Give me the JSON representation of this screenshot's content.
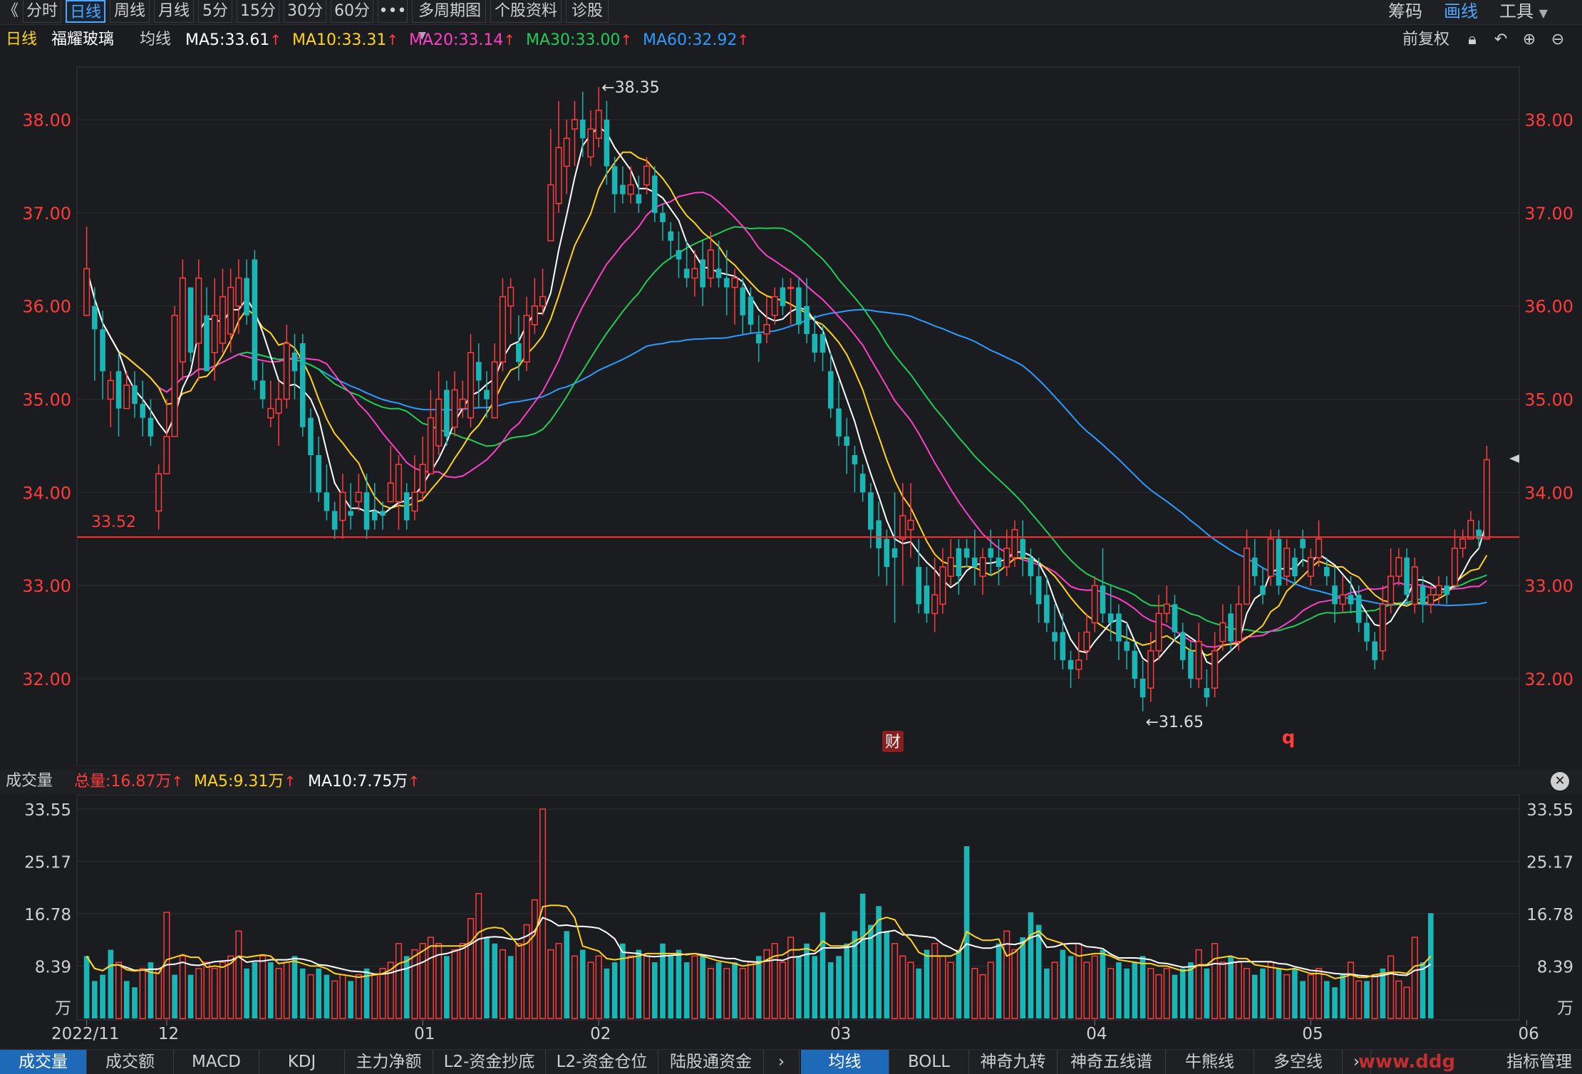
{
  "toolbar": {
    "back_icon": "chevron-left-icon",
    "periods": [
      "分时",
      "日线",
      "周线",
      "月线",
      "5分",
      "15分",
      "30分",
      "60分",
      "•••",
      "多周期图"
    ],
    "active_period": "日线",
    "extra": [
      "个股资料",
      "诊股"
    ],
    "right": [
      "筹码",
      "画线",
      "工具"
    ]
  },
  "info": {
    "period": "日线",
    "stock_name": "福耀玻璃",
    "ma_label": "均线",
    "ma5": "MA5:33.61",
    "ma10": "MA10:33.31",
    "ma20": "MA20:33.14",
    "ma30": "MA30:33.00",
    "ma60": "MA60:32.92",
    "adjust": "前复权",
    "up_arrow": "↑"
  },
  "main_chart": {
    "y_ticks": [
      "38.00",
      "37.00",
      "36.00",
      "35.00",
      "34.00",
      "33.00",
      "32.00"
    ],
    "high_marker": "←38.35",
    "low_marker": "←31.65",
    "hline_label": "33.52",
    "hline_value": 33.52,
    "fin_badge": "财",
    "q_marker": "q"
  },
  "volume": {
    "title": "成交量",
    "total": "总量:16.87万",
    "ma5": "MA5:9.31万",
    "ma10": "MA10:7.75万",
    "y_ticks": [
      "33.55",
      "25.17",
      "16.78",
      "8.39",
      "万"
    ],
    "x_labels": [
      "2022/11",
      "12",
      "01",
      "02",
      "03",
      "04",
      "05",
      "06"
    ]
  },
  "bottom_tabs": {
    "left": [
      "成交量",
      "成交额",
      "MACD",
      "KDJ",
      "主力净额",
      "L2-资金抄底",
      "L2-资金仓位",
      "陆股通资金"
    ],
    "right": [
      "均线",
      "BOLL",
      "神奇九转",
      "神奇五线谱",
      "牛熊线",
      "多空线"
    ],
    "active_left": "成交量",
    "active_right": "均线",
    "more": "指标管理",
    "watermark": "www.ddg"
  },
  "colors": {
    "up": "#ff3b3b",
    "down": "#1ab5b5",
    "ma5": "#ffffff",
    "ma10": "#ffd21f",
    "ma20": "#ff3fc8",
    "ma30": "#22cc55",
    "ma60": "#2e9bff"
  },
  "chart_data": {
    "type": "candlestick",
    "price_ylim": [
      31.5,
      38.5
    ],
    "volume_ylim": [
      0,
      33.55
    ],
    "volume_unit": "万",
    "high": 38.35,
    "low": 31.65,
    "candles": [
      [
        35.9,
        36.4,
        36.85,
        35.9
      ],
      [
        36.0,
        35.75,
        36.2,
        35.2
      ],
      [
        35.75,
        35.3,
        35.95,
        35.0
      ],
      [
        35.0,
        35.2,
        35.3,
        34.7
      ],
      [
        35.3,
        34.9,
        35.5,
        34.6
      ],
      [
        34.9,
        35.15,
        35.3,
        34.9
      ],
      [
        35.15,
        34.95,
        35.3,
        34.8
      ],
      [
        34.95,
        34.8,
        35.2,
        34.6
      ],
      [
        34.8,
        34.6,
        35.0,
        34.5
      ],
      [
        33.8,
        34.2,
        34.3,
        33.6
      ],
      [
        34.2,
        34.6,
        35.0,
        34.2
      ],
      [
        34.6,
        35.9,
        36.0,
        34.6
      ],
      [
        35.4,
        36.3,
        36.5,
        35.2
      ],
      [
        36.2,
        35.5,
        36.0,
        35.4
      ],
      [
        35.6,
        36.3,
        36.5,
        35.2
      ],
      [
        35.9,
        35.3,
        36.2,
        35.3
      ],
      [
        35.5,
        35.9,
        36.3,
        35.2
      ],
      [
        35.6,
        36.1,
        36.4,
        35.5
      ],
      [
        35.7,
        36.2,
        36.4,
        35.5
      ],
      [
        36.0,
        36.3,
        36.5,
        35.7
      ],
      [
        36.3,
        35.9,
        36.5,
        35.8
      ],
      [
        36.5,
        35.2,
        36.6,
        35.1
      ],
      [
        35.2,
        35.0,
        35.4,
        34.9
      ],
      [
        34.8,
        34.9,
        35.2,
        34.7
      ],
      [
        34.85,
        35.0,
        35.2,
        34.5
      ],
      [
        35.0,
        35.6,
        35.8,
        34.9
      ],
      [
        35.5,
        35.3,
        35.7,
        35.0
      ],
      [
        35.6,
        34.7,
        35.7,
        34.6
      ],
      [
        34.8,
        34.4,
        34.9,
        34.0
      ],
      [
        34.4,
        34.0,
        34.6,
        33.9
      ],
      [
        34.0,
        33.8,
        34.3,
        33.7
      ],
      [
        33.8,
        33.6,
        33.9,
        33.5
      ],
      [
        33.7,
        34.0,
        34.2,
        33.5
      ],
      [
        33.8,
        33.75,
        34.1,
        33.6
      ],
      [
        33.9,
        34.0,
        34.2,
        33.8
      ],
      [
        34.0,
        33.6,
        34.2,
        33.5
      ],
      [
        33.8,
        33.7,
        34.1,
        33.6
      ],
      [
        33.8,
        33.75,
        33.9,
        33.6
      ],
      [
        33.9,
        34.1,
        34.5,
        33.9
      ],
      [
        33.9,
        34.3,
        34.4,
        33.6
      ],
      [
        34.0,
        33.7,
        34.1,
        33.6
      ],
      [
        33.8,
        34.0,
        34.4,
        33.7
      ],
      [
        34.0,
        34.3,
        34.6,
        33.9
      ],
      [
        34.2,
        34.8,
        35.1,
        34.2
      ],
      [
        34.5,
        35.0,
        35.3,
        34.4
      ],
      [
        35.1,
        34.6,
        35.2,
        34.5
      ],
      [
        34.7,
        35.1,
        35.3,
        34.6
      ],
      [
        34.9,
        35.0,
        35.2,
        34.8
      ],
      [
        34.8,
        35.5,
        35.7,
        34.7
      ],
      [
        35.4,
        35.2,
        35.6,
        34.9
      ],
      [
        35.1,
        35.0,
        35.3,
        34.8
      ],
      [
        34.8,
        35.4,
        35.6,
        34.8
      ],
      [
        35.4,
        36.1,
        36.3,
        35.3
      ],
      [
        36.0,
        36.2,
        36.3,
        35.7
      ],
      [
        35.6,
        35.4,
        35.9,
        35.2
      ],
      [
        35.4,
        35.9,
        36.1,
        35.3
      ],
      [
        35.8,
        36.0,
        36.3,
        35.7
      ],
      [
        36.0,
        36.1,
        36.4,
        35.9
      ],
      [
        36.7,
        37.3,
        37.9,
        36.7
      ],
      [
        37.1,
        37.7,
        38.2,
        37.0
      ],
      [
        37.5,
        37.8,
        38.0,
        37.2
      ],
      [
        37.9,
        38.0,
        38.2,
        37.5
      ],
      [
        38.0,
        37.8,
        38.3,
        37.6
      ],
      [
        37.6,
        37.9,
        38.1,
        37.5
      ],
      [
        37.8,
        38.1,
        38.35,
        37.7
      ],
      [
        38.0,
        37.5,
        38.2,
        37.3
      ],
      [
        37.5,
        37.2,
        37.6,
        37.0
      ],
      [
        37.3,
        37.2,
        37.5,
        37.1
      ],
      [
        37.2,
        37.3,
        37.5,
        37.1
      ],
      [
        37.2,
        37.1,
        37.4,
        37.0
      ],
      [
        37.3,
        37.5,
        37.6,
        37.2
      ],
      [
        37.4,
        37.0,
        37.5,
        36.9
      ],
      [
        37.0,
        36.9,
        37.1,
        36.7
      ],
      [
        36.8,
        36.7,
        36.9,
        36.5
      ],
      [
        36.6,
        36.5,
        36.8,
        36.3
      ],
      [
        36.4,
        36.3,
        36.7,
        36.2
      ],
      [
        36.3,
        36.4,
        36.6,
        36.1
      ],
      [
        36.5,
        36.2,
        36.7,
        36.0
      ],
      [
        36.3,
        36.6,
        36.8,
        36.2
      ],
      [
        36.4,
        36.3,
        36.7,
        36.2
      ],
      [
        36.3,
        36.2,
        36.6,
        35.9
      ],
      [
        36.2,
        36.3,
        36.4,
        35.8
      ],
      [
        36.2,
        35.9,
        36.3,
        35.7
      ],
      [
        36.1,
        35.8,
        36.2,
        35.7
      ],
      [
        35.7,
        35.6,
        35.9,
        35.4
      ],
      [
        35.7,
        35.8,
        36.1,
        35.6
      ],
      [
        35.9,
        36.1,
        36.2,
        35.8
      ],
      [
        36.2,
        36.0,
        36.3,
        35.9
      ],
      [
        36.2,
        36.2,
        36.3,
        35.8
      ],
      [
        36.2,
        35.8,
        36.3,
        35.7
      ],
      [
        36.0,
        35.7,
        36.3,
        35.6
      ],
      [
        35.7,
        35.5,
        35.9,
        35.4
      ],
      [
        35.7,
        35.5,
        35.8,
        35.3
      ],
      [
        35.3,
        34.9,
        35.5,
        34.8
      ],
      [
        34.9,
        34.6,
        35.2,
        34.5
      ],
      [
        34.6,
        34.5,
        34.8,
        34.2
      ],
      [
        34.4,
        34.3,
        34.5,
        34.0
      ],
      [
        34.2,
        34.0,
        34.3,
        33.9
      ],
      [
        34.0,
        33.6,
        34.1,
        33.4
      ],
      [
        33.7,
        33.4,
        33.9,
        33.1
      ],
      [
        33.5,
        33.2,
        33.6,
        33.0
      ],
      [
        33.4,
        33.3,
        34.0,
        32.6
      ],
      [
        33.5,
        33.75,
        34.1,
        33.0
      ],
      [
        33.6,
        33.7,
        34.1,
        33.3
      ],
      [
        33.2,
        32.8,
        33.5,
        32.7
      ],
      [
        33.0,
        32.7,
        33.2,
        32.6
      ],
      [
        32.7,
        32.9,
        33.3,
        32.5
      ],
      [
        32.8,
        33.2,
        33.4,
        32.7
      ],
      [
        33.1,
        33.3,
        33.5,
        33.0
      ],
      [
        33.4,
        33.1,
        33.5,
        32.9
      ],
      [
        33.4,
        33.3,
        33.5,
        33.2
      ],
      [
        33.3,
        33.2,
        33.6,
        33.0
      ],
      [
        33.1,
        33.3,
        33.4,
        32.9
      ],
      [
        33.4,
        33.3,
        33.6,
        33.1
      ],
      [
        33.3,
        33.2,
        33.5,
        33.0
      ],
      [
        33.2,
        33.4,
        33.6,
        33.1
      ],
      [
        33.3,
        33.6,
        33.7,
        33.2
      ],
      [
        33.5,
        33.3,
        33.7,
        33.1
      ],
      [
        33.3,
        33.1,
        33.4,
        32.9
      ],
      [
        33.1,
        32.8,
        33.3,
        32.6
      ],
      [
        32.9,
        32.6,
        33.1,
        32.5
      ],
      [
        32.5,
        32.4,
        32.8,
        32.2
      ],
      [
        32.5,
        32.2,
        32.7,
        32.1
      ],
      [
        32.2,
        32.1,
        32.3,
        31.9
      ],
      [
        32.1,
        32.2,
        32.5,
        32.0
      ],
      [
        32.3,
        32.5,
        32.7,
        32.2
      ],
      [
        32.6,
        33.0,
        33.1,
        32.5
      ],
      [
        33.0,
        32.7,
        33.4,
        32.6
      ],
      [
        32.7,
        32.6,
        33.0,
        32.4
      ],
      [
        32.7,
        32.4,
        32.8,
        32.2
      ],
      [
        32.4,
        32.3,
        32.6,
        32.1
      ],
      [
        32.3,
        32.0,
        32.4,
        31.9
      ],
      [
        32.0,
        31.8,
        32.2,
        31.65
      ],
      [
        31.9,
        32.3,
        32.5,
        31.75
      ],
      [
        32.3,
        32.7,
        32.9,
        32.2
      ],
      [
        32.7,
        32.8,
        33.0,
        32.6
      ],
      [
        32.8,
        32.5,
        32.9,
        32.4
      ],
      [
        32.5,
        32.2,
        32.6,
        32.1
      ],
      [
        32.3,
        32.0,
        32.4,
        31.9
      ],
      [
        32.0,
        32.4,
        32.6,
        31.9
      ],
      [
        31.9,
        31.8,
        32.1,
        31.7
      ],
      [
        31.9,
        32.3,
        32.5,
        31.8
      ],
      [
        32.4,
        32.6,
        32.8,
        32.3
      ],
      [
        32.7,
        32.4,
        32.8,
        32.3
      ],
      [
        32.4,
        32.8,
        33.0,
        32.3
      ],
      [
        32.8,
        33.4,
        33.6,
        32.8
      ],
      [
        33.3,
        33.1,
        33.5,
        33.0
      ],
      [
        33.0,
        32.9,
        33.2,
        32.8
      ],
      [
        33.1,
        33.5,
        33.6,
        33.0
      ],
      [
        33.5,
        33.0,
        33.6,
        32.9
      ],
      [
        33.1,
        33.4,
        33.5,
        33.0
      ],
      [
        33.3,
        33.1,
        33.4,
        33.0
      ],
      [
        33.5,
        33.4,
        33.6,
        33.2
      ],
      [
        33.1,
        33.3,
        33.4,
        33.0
      ],
      [
        33.3,
        33.5,
        33.7,
        33.2
      ],
      [
        33.2,
        33.1,
        33.3,
        33.0
      ],
      [
        33.0,
        32.8,
        33.2,
        32.6
      ],
      [
        32.8,
        32.9,
        33.1,
        32.7
      ],
      [
        32.9,
        32.8,
        33.1,
        32.7
      ],
      [
        32.9,
        32.6,
        33.0,
        32.5
      ],
      [
        32.6,
        32.4,
        32.7,
        32.3
      ],
      [
        32.4,
        32.2,
        32.5,
        32.1
      ],
      [
        32.3,
        32.8,
        33.0,
        32.2
      ],
      [
        32.8,
        33.1,
        33.4,
        32.7
      ],
      [
        33.1,
        33.3,
        33.4,
        33.0
      ],
      [
        33.3,
        32.9,
        33.4,
        32.8
      ],
      [
        32.8,
        33.2,
        33.3,
        32.7
      ],
      [
        33.0,
        32.8,
        33.1,
        32.6
      ],
      [
        32.8,
        32.9,
        33.0,
        32.7
      ],
      [
        32.9,
        33.0,
        33.1,
        32.8
      ],
      [
        33.0,
        32.9,
        33.1,
        32.8
      ],
      [
        33.0,
        33.4,
        33.6,
        33.0
      ],
      [
        33.4,
        33.5,
        33.6,
        33.3
      ],
      [
        33.5,
        33.7,
        33.8,
        33.5
      ],
      [
        33.6,
        33.5,
        33.7,
        33.4
      ],
      [
        33.5,
        34.35,
        34.5,
        33.5
      ]
    ],
    "volumes": [
      10,
      6,
      7,
      11,
      9,
      6,
      5,
      8,
      9,
      8,
      17,
      7,
      10,
      7,
      8,
      9,
      8,
      9,
      10,
      14,
      8,
      9,
      10,
      9,
      8,
      9,
      10,
      8,
      7,
      8,
      7,
      6,
      7,
      6,
      7,
      8,
      7,
      8,
      9,
      12,
      10,
      11,
      12,
      13,
      12,
      10,
      11,
      12,
      16,
      20,
      13,
      12,
      11,
      10,
      12,
      15,
      19,
      33.55,
      11,
      12,
      14,
      10,
      11,
      9,
      10,
      8,
      9,
      12,
      10,
      11,
      10,
      9,
      12,
      10,
      11,
      9,
      10,
      10,
      8,
      9,
      8,
      9,
      8,
      9,
      10,
      11,
      12,
      9,
      13,
      10,
      12,
      10,
      17,
      9,
      10,
      12,
      14,
      20,
      15,
      18,
      14,
      12,
      10,
      9,
      8,
      11,
      12,
      10,
      9,
      11,
      27.6,
      8,
      7,
      9,
      12,
      14,
      11,
      13,
      17,
      15,
      8,
      9,
      11,
      10,
      12,
      9,
      10,
      11,
      8,
      9,
      8,
      9,
      10,
      8,
      7,
      8,
      7,
      8,
      9,
      11,
      8,
      12,
      9,
      10,
      9,
      8,
      7,
      8,
      9,
      8,
      7,
      8,
      6,
      7,
      8,
      6,
      5,
      7,
      9,
      6,
      6,
      7,
      8,
      10,
      6,
      5,
      13,
      9,
      16.87
    ],
    "volume_up": [
      false,
      false,
      false,
      false,
      true,
      false,
      false,
      true,
      false,
      true,
      true,
      false,
      true,
      false,
      true,
      true,
      true,
      true,
      true,
      true,
      false,
      false,
      true,
      false,
      true,
      true,
      false,
      false,
      true,
      false,
      false,
      true,
      true,
      false,
      true,
      false,
      true,
      true,
      true,
      true,
      false,
      true,
      true,
      true,
      true,
      false,
      true,
      true,
      true,
      true,
      false,
      false,
      true,
      false,
      true,
      true,
      true,
      true,
      true,
      true,
      false,
      true,
      false,
      true,
      true,
      false,
      false,
      false,
      true,
      false,
      true,
      false,
      false,
      false,
      false,
      false,
      true,
      false,
      true,
      false,
      true,
      false,
      true,
      true,
      false,
      true,
      true,
      true,
      true,
      false,
      false,
      false,
      false,
      false,
      false,
      false,
      false,
      false,
      false,
      false,
      false,
      true,
      true,
      true,
      false,
      false,
      true,
      true,
      true,
      false,
      false,
      true,
      true,
      true,
      false,
      true,
      true,
      false,
      false,
      false,
      false,
      true,
      false,
      false,
      true,
      true,
      true,
      false,
      true,
      false,
      false,
      false,
      false,
      true,
      true,
      true,
      false,
      false,
      false,
      true,
      false,
      true,
      true,
      false,
      true,
      true,
      false,
      false,
      true,
      false,
      true,
      false,
      false,
      true,
      true,
      false,
      false,
      false,
      true,
      true,
      false,
      true,
      false,
      true,
      true,
      true,
      true,
      false,
      false,
      true
    ]
  }
}
